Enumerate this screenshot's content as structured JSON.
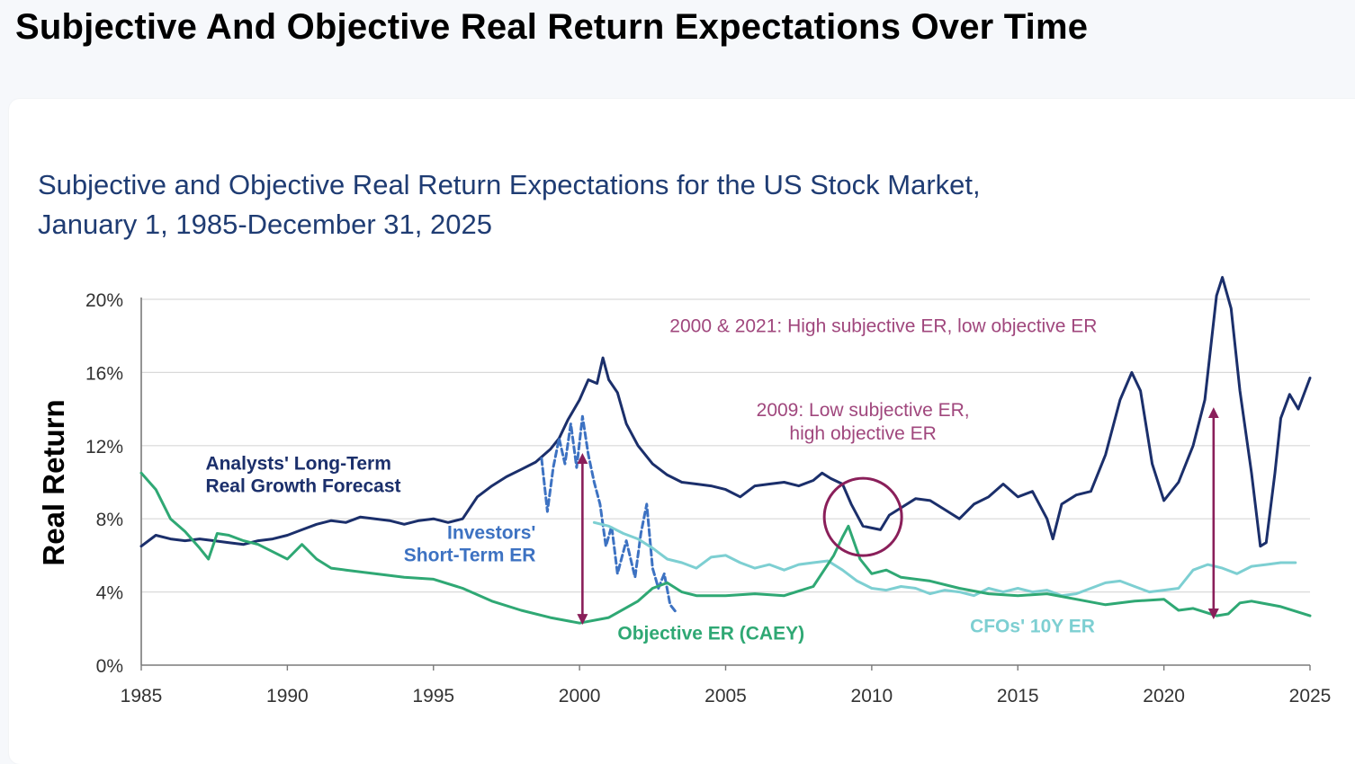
{
  "page": {
    "title": "Subjective And Objective Real Return Expectations Over Time"
  },
  "chart_data": {
    "type": "line",
    "title_line1": "Subjective and Objective Real Return Expectations for the US Stock Market,",
    "title_line2": "January 1, 1985-December 31, 2025",
    "ylabel": "Real Return",
    "xlim": [
      1985,
      2025
    ],
    "ylim": [
      0,
      20
    ],
    "x_ticks": [
      1985,
      1990,
      1995,
      2000,
      2005,
      2010,
      2015,
      2020,
      2025
    ],
    "x_tick_labels": [
      "1985",
      "1990",
      "1995",
      "2000",
      "2005",
      "2010",
      "2015",
      "2020",
      "2025"
    ],
    "y_ticks": [
      0,
      4,
      8,
      12,
      16,
      20
    ],
    "y_tick_labels": [
      "0%",
      "4%",
      "8%",
      "12%",
      "16%",
      "20%"
    ],
    "grid": "horizontal",
    "series": [
      {
        "name": "Analysts' Long-Term Real Growth Forecast",
        "color": "#1b2f6b",
        "dash": "",
        "points": [
          [
            1985,
            6.5
          ],
          [
            1985.5,
            7.1
          ],
          [
            1986,
            6.9
          ],
          [
            1986.5,
            6.8
          ],
          [
            1987,
            6.9
          ],
          [
            1987.5,
            6.8
          ],
          [
            1988,
            6.7
          ],
          [
            1988.5,
            6.6
          ],
          [
            1989,
            6.8
          ],
          [
            1989.5,
            6.9
          ],
          [
            1990,
            7.1
          ],
          [
            1990.5,
            7.4
          ],
          [
            1991,
            7.7
          ],
          [
            1991.5,
            7.9
          ],
          [
            1992,
            7.8
          ],
          [
            1992.5,
            8.1
          ],
          [
            1993,
            8.0
          ],
          [
            1993.5,
            7.9
          ],
          [
            1994,
            7.7
          ],
          [
            1994.5,
            7.9
          ],
          [
            1995,
            8.0
          ],
          [
            1995.5,
            7.8
          ],
          [
            1996,
            8.0
          ],
          [
            1996.5,
            9.2
          ],
          [
            1997,
            9.8
          ],
          [
            1997.5,
            10.3
          ],
          [
            1998,
            10.7
          ],
          [
            1998.5,
            11.1
          ],
          [
            1999,
            11.8
          ],
          [
            1999.3,
            12.4
          ],
          [
            1999.6,
            13.4
          ],
          [
            2000,
            14.5
          ],
          [
            2000.3,
            15.6
          ],
          [
            2000.6,
            15.4
          ],
          [
            2000.8,
            16.8
          ],
          [
            2001,
            15.6
          ],
          [
            2001.3,
            14.9
          ],
          [
            2001.6,
            13.2
          ],
          [
            2002,
            12.0
          ],
          [
            2002.5,
            11.0
          ],
          [
            2003,
            10.4
          ],
          [
            2003.5,
            10.0
          ],
          [
            2004,
            9.9
          ],
          [
            2004.5,
            9.8
          ],
          [
            2005,
            9.6
          ],
          [
            2005.5,
            9.2
          ],
          [
            2006,
            9.8
          ],
          [
            2006.5,
            9.9
          ],
          [
            2007,
            10.0
          ],
          [
            2007.5,
            9.8
          ],
          [
            2008,
            10.1
          ],
          [
            2008.3,
            10.5
          ],
          [
            2008.6,
            10.2
          ],
          [
            2009,
            9.9
          ],
          [
            2009.3,
            8.8
          ],
          [
            2009.7,
            7.6
          ],
          [
            2010,
            7.5
          ],
          [
            2010.3,
            7.4
          ],
          [
            2010.6,
            8.2
          ],
          [
            2011,
            8.6
          ],
          [
            2011.5,
            9.1
          ],
          [
            2012,
            9.0
          ],
          [
            2012.5,
            8.5
          ],
          [
            2013,
            8.0
          ],
          [
            2013.5,
            8.8
          ],
          [
            2014,
            9.2
          ],
          [
            2014.5,
            9.9
          ],
          [
            2015,
            9.2
          ],
          [
            2015.5,
            9.5
          ],
          [
            2016,
            8.0
          ],
          [
            2016.2,
            6.9
          ],
          [
            2016.5,
            8.8
          ],
          [
            2017,
            9.3
          ],
          [
            2017.5,
            9.5
          ],
          [
            2018,
            11.5
          ],
          [
            2018.5,
            14.5
          ],
          [
            2018.9,
            16.0
          ],
          [
            2019.2,
            15.0
          ],
          [
            2019.6,
            11.0
          ],
          [
            2020,
            9.0
          ],
          [
            2020.5,
            10.0
          ],
          [
            2021,
            12.0
          ],
          [
            2021.4,
            14.5
          ],
          [
            2021.8,
            20.2
          ],
          [
            2022,
            21.2
          ],
          [
            2022.3,
            19.5
          ],
          [
            2022.6,
            15.0
          ],
          [
            2023,
            10.5
          ],
          [
            2023.3,
            6.5
          ],
          [
            2023.5,
            6.7
          ],
          [
            2023.8,
            10.5
          ],
          [
            2024,
            13.5
          ],
          [
            2024.3,
            14.8
          ],
          [
            2024.6,
            14.0
          ],
          [
            2025,
            15.7
          ]
        ]
      },
      {
        "name": "Investors' Short-Term ER",
        "color": "#3d72c2",
        "dash": "7,4",
        "points": [
          [
            1998.7,
            11.3
          ],
          [
            1998.9,
            8.4
          ],
          [
            1999.1,
            10.8
          ],
          [
            1999.3,
            12.4
          ],
          [
            1999.5,
            11.0
          ],
          [
            1999.7,
            13.2
          ],
          [
            1999.9,
            10.8
          ],
          [
            2000.1,
            13.6
          ],
          [
            2000.3,
            11.5
          ],
          [
            2000.5,
            10.0
          ],
          [
            2000.7,
            8.8
          ],
          [
            2000.9,
            6.5
          ],
          [
            2001.1,
            7.6
          ],
          [
            2001.3,
            5.0
          ],
          [
            2001.6,
            6.8
          ],
          [
            2001.9,
            4.8
          ],
          [
            2002.1,
            7.2
          ],
          [
            2002.3,
            8.8
          ],
          [
            2002.5,
            5.3
          ],
          [
            2002.7,
            4.2
          ],
          [
            2002.9,
            5.0
          ],
          [
            2003.1,
            3.3
          ],
          [
            2003.3,
            2.9
          ]
        ]
      },
      {
        "name": "CFOs' 10Y ER",
        "color": "#7dcfd2",
        "dash": "",
        "points": [
          [
            2000.5,
            7.8
          ],
          [
            2001,
            7.6
          ],
          [
            2001.5,
            7.2
          ],
          [
            2002,
            6.9
          ],
          [
            2002.5,
            6.4
          ],
          [
            2003,
            5.8
          ],
          [
            2003.5,
            5.6
          ],
          [
            2004,
            5.3
          ],
          [
            2004.5,
            5.9
          ],
          [
            2005,
            6.0
          ],
          [
            2005.5,
            5.6
          ],
          [
            2006,
            5.3
          ],
          [
            2006.5,
            5.5
          ],
          [
            2007,
            5.2
          ],
          [
            2007.5,
            5.5
          ],
          [
            2008,
            5.6
          ],
          [
            2008.5,
            5.7
          ],
          [
            2009,
            5.2
          ],
          [
            2009.5,
            4.6
          ],
          [
            2010,
            4.2
          ],
          [
            2010.5,
            4.1
          ],
          [
            2011,
            4.3
          ],
          [
            2011.5,
            4.2
          ],
          [
            2012,
            3.9
          ],
          [
            2012.5,
            4.1
          ],
          [
            2013,
            4.0
          ],
          [
            2013.5,
            3.8
          ],
          [
            2014,
            4.2
          ],
          [
            2014.5,
            4.0
          ],
          [
            2015,
            4.2
          ],
          [
            2015.5,
            4.0
          ],
          [
            2016,
            4.1
          ],
          [
            2016.5,
            3.8
          ],
          [
            2017,
            3.9
          ],
          [
            2017.5,
            4.2
          ],
          [
            2018,
            4.5
          ],
          [
            2018.5,
            4.6
          ],
          [
            2019,
            4.3
          ],
          [
            2019.5,
            4.0
          ],
          [
            2020,
            4.1
          ],
          [
            2020.5,
            4.2
          ],
          [
            2021,
            5.2
          ],
          [
            2021.5,
            5.5
          ],
          [
            2022,
            5.3
          ],
          [
            2022.5,
            5.0
          ],
          [
            2023,
            5.4
          ],
          [
            2023.5,
            5.5
          ],
          [
            2024,
            5.6
          ],
          [
            2024.5,
            5.6
          ]
        ]
      },
      {
        "name": "Objective ER (CAEY)",
        "color": "#2fa874",
        "dash": "",
        "points": [
          [
            1985,
            10.5
          ],
          [
            1985.5,
            9.6
          ],
          [
            1986,
            8.0
          ],
          [
            1986.5,
            7.3
          ],
          [
            1987,
            6.4
          ],
          [
            1987.3,
            5.8
          ],
          [
            1987.6,
            7.2
          ],
          [
            1988,
            7.1
          ],
          [
            1988.5,
            6.8
          ],
          [
            1989,
            6.6
          ],
          [
            1989.5,
            6.2
          ],
          [
            1990,
            5.8
          ],
          [
            1990.5,
            6.6
          ],
          [
            1991,
            5.8
          ],
          [
            1991.5,
            5.3
          ],
          [
            1992,
            5.2
          ],
          [
            1993,
            5.0
          ],
          [
            1994,
            4.8
          ],
          [
            1995,
            4.7
          ],
          [
            1996,
            4.2
          ],
          [
            1997,
            3.5
          ],
          [
            1998,
            3.0
          ],
          [
            1999,
            2.6
          ],
          [
            2000,
            2.3
          ],
          [
            2001,
            2.6
          ],
          [
            2002,
            3.5
          ],
          [
            2002.5,
            4.2
          ],
          [
            2003,
            4.5
          ],
          [
            2003.5,
            4.0
          ],
          [
            2004,
            3.8
          ],
          [
            2005,
            3.8
          ],
          [
            2006,
            3.9
          ],
          [
            2007,
            3.8
          ],
          [
            2008,
            4.3
          ],
          [
            2008.7,
            6.0
          ],
          [
            2009,
            7.0
          ],
          [
            2009.2,
            7.6
          ],
          [
            2009.6,
            5.8
          ],
          [
            2010,
            5.0
          ],
          [
            2010.5,
            5.2
          ],
          [
            2011,
            4.8
          ],
          [
            2012,
            4.6
          ],
          [
            2013,
            4.2
          ],
          [
            2014,
            3.9
          ],
          [
            2015,
            3.8
          ],
          [
            2016,
            3.9
          ],
          [
            2017,
            3.6
          ],
          [
            2018,
            3.3
          ],
          [
            2019,
            3.5
          ],
          [
            2020,
            3.6
          ],
          [
            2020.5,
            3.0
          ],
          [
            2021,
            3.1
          ],
          [
            2021.8,
            2.7
          ],
          [
            2022.2,
            2.8
          ],
          [
            2022.6,
            3.4
          ],
          [
            2023,
            3.5
          ],
          [
            2024,
            3.2
          ],
          [
            2025,
            2.7
          ]
        ]
      }
    ],
    "series_labels": [
      {
        "series": 0,
        "lines": [
          "Analysts' Long-Term",
          "Real Growth Forecast"
        ],
        "color": "#1b2f6b",
        "anchor": "start",
        "bold": true,
        "at": [
          1987.2,
          10.7
        ]
      },
      {
        "series": 1,
        "lines": [
          "Investors'",
          "Short-Term ER"
        ],
        "color": "#3d72c2",
        "anchor": "end",
        "bold": true,
        "at": [
          1998.5,
          6.9
        ]
      },
      {
        "series": 2,
        "lines": [
          "CFOs' 10Y ER"
        ],
        "color": "#7dcfd2",
        "anchor": "middle",
        "bold": true,
        "at": [
          2015.5,
          1.8
        ]
      },
      {
        "series": 3,
        "lines": [
          "Objective ER (CAEY)"
        ],
        "color": "#2fa874",
        "anchor": "middle",
        "bold": true,
        "at": [
          2004.5,
          1.4
        ]
      }
    ],
    "annotations": [
      {
        "lines": [
          "2000 & 2021: High subjective ER, low objective ER"
        ],
        "color": "#a0477d",
        "anchor": "middle",
        "at": [
          2010.4,
          18.2
        ]
      },
      {
        "lines": [
          "2009: Low subjective ER,",
          "high objective ER"
        ],
        "color": "#a0477d",
        "anchor": "middle",
        "at": [
          2009.7,
          13.6
        ]
      }
    ],
    "arrows": [
      {
        "x": 2000.1,
        "y_from": 2.5,
        "y_to": 11.3,
        "color": "#8a1f5a"
      },
      {
        "x": 2021.7,
        "y_from": 2.8,
        "y_to": 13.8,
        "color": "#8a1f5a"
      }
    ],
    "circle": {
      "x": 2009.7,
      "y": 8.1,
      "color": "#8a1f5a"
    }
  }
}
